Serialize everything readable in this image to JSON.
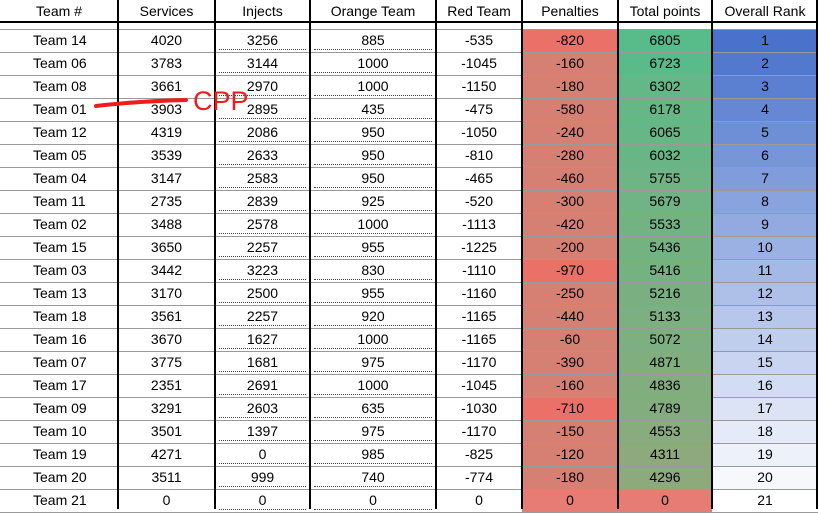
{
  "columns": [
    "Team #",
    "Services",
    "Injects",
    "Orange Team",
    "Red Team",
    "Penalties",
    "Total points",
    "Overall Rank"
  ],
  "rows": [
    [
      "Team 14",
      "4020",
      "3256",
      "885",
      "-535",
      "-820",
      "6805",
      "1"
    ],
    [
      "Team 06",
      "3783",
      "3144",
      "1000",
      "-1045",
      "-160",
      "6723",
      "2"
    ],
    [
      "Team 08",
      "3661",
      "2970",
      "1000",
      "-1150",
      "-180",
      "6302",
      "3"
    ],
    [
      "Team 01",
      "3903",
      "2895",
      "435",
      "-475",
      "-580",
      "6178",
      "4"
    ],
    [
      "Team 12",
      "4319",
      "2086",
      "950",
      "-1050",
      "-240",
      "6065",
      "5"
    ],
    [
      "Team 05",
      "3539",
      "2633",
      "950",
      "-810",
      "-280",
      "6032",
      "6"
    ],
    [
      "Team 04",
      "3147",
      "2583",
      "950",
      "-465",
      "-460",
      "5755",
      "7"
    ],
    [
      "Team 11",
      "2735",
      "2839",
      "925",
      "-520",
      "-300",
      "5679",
      "8"
    ],
    [
      "Team 02",
      "3488",
      "2578",
      "1000",
      "-1113",
      "-420",
      "5533",
      "9"
    ],
    [
      "Team 15",
      "3650",
      "2257",
      "955",
      "-1225",
      "-200",
      "5436",
      "10"
    ],
    [
      "Team 03",
      "3442",
      "3223",
      "830",
      "-1110",
      "-970",
      "5416",
      "11"
    ],
    [
      "Team 13",
      "3170",
      "2500",
      "955",
      "-1160",
      "-250",
      "5216",
      "12"
    ],
    [
      "Team 18",
      "3561",
      "2257",
      "920",
      "-1165",
      "-440",
      "5133",
      "13"
    ],
    [
      "Team 16",
      "3670",
      "1627",
      "1000",
      "-1165",
      "-60",
      "5072",
      "14"
    ],
    [
      "Team 07",
      "3775",
      "1681",
      "975",
      "-1170",
      "-390",
      "4871",
      "15"
    ],
    [
      "Team 17",
      "2351",
      "2691",
      "1000",
      "-1045",
      "-160",
      "4836",
      "16"
    ],
    [
      "Team 09",
      "3291",
      "2603",
      "635",
      "-1030",
      "-710",
      "4789",
      "17"
    ],
    [
      "Team 10",
      "3501",
      "1397",
      "975",
      "-1170",
      "-150",
      "4553",
      "18"
    ],
    [
      "Team 19",
      "4271",
      "0",
      "985",
      "-825",
      "-120",
      "4311",
      "19"
    ],
    [
      "Team 20",
      "3511",
      "999",
      "740",
      "-774",
      "-180",
      "4296",
      "20"
    ],
    [
      "Team 21",
      "0",
      "0",
      "0",
      "0",
      "0",
      "0",
      "21"
    ]
  ],
  "annotation": {
    "text": "CPP",
    "color": "#ee1c1c",
    "target_team": "Team 01"
  },
  "colors": {
    "penalties_light": "#e67c73",
    "penalties_dark": "#d68074",
    "total_high": "#57bb8a",
    "total_low": "#e67c73",
    "rank_top": "#4a72cc",
    "rank_bottom": "#ffffff",
    "grid": "#000000",
    "header_bg": "#ffffff"
  }
}
